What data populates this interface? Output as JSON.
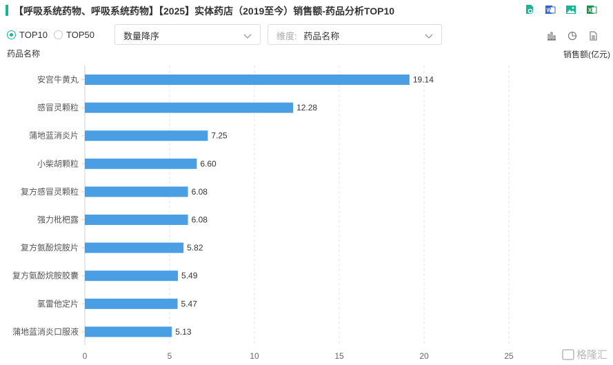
{
  "header": {
    "title": "【呼吸系统药物、呼吸系统药物】【2025】实体药店（2019至今）销售额-药品分析TOP10",
    "icons": [
      "search-document-icon",
      "word-export-icon",
      "image-export-icon",
      "excel-export-icon"
    ]
  },
  "controls": {
    "radio_top10": "TOP10",
    "radio_top50": "TOP50",
    "selected": "TOP10",
    "sort_select": "数量降序",
    "dimension_label": "维度:",
    "dimension_value": "药品名称",
    "view_icons": [
      "bar-chart-icon",
      "pie-chart-icon",
      "table-view-icon"
    ]
  },
  "axis": {
    "y_title": "药品名称",
    "x_title": "销售额(亿元)"
  },
  "watermark": "格隆汇",
  "chart_data": {
    "type": "bar",
    "orientation": "horizontal",
    "categories": [
      "安宫牛黄丸",
      "感冒灵颗粒",
      "蒲地蓝消炎片",
      "小柴胡颗粒",
      "复方感冒灵颗粒",
      "强力枇杷露",
      "复方氨酚烷胺片",
      "复方氨酚烷胺胶囊",
      "氯雷他定片",
      "蒲地蓝消炎口服液"
    ],
    "values": [
      19.14,
      12.28,
      7.25,
      6.6,
      6.08,
      6.08,
      5.82,
      5.49,
      5.47,
      5.13
    ],
    "value_labels": [
      "19.14",
      "12.28",
      "7.25",
      "6.60",
      "6.08",
      "6.08",
      "5.82",
      "5.49",
      "5.47",
      "5.13"
    ],
    "xlim": [
      0,
      30
    ],
    "xticks": [
      "0",
      "5",
      "10",
      "15",
      "20",
      "25"
    ],
    "xlabel": "销售额(亿元)",
    "ylabel": "药品名称",
    "bar_color": "#4a9fe4",
    "grid": true
  }
}
